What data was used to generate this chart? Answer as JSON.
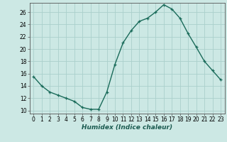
{
  "x": [
    0,
    1,
    2,
    3,
    4,
    5,
    6,
    7,
    8,
    9,
    10,
    11,
    12,
    13,
    14,
    15,
    16,
    17,
    18,
    19,
    20,
    21,
    22,
    23
  ],
  "y": [
    15.5,
    14.0,
    13.0,
    12.5,
    12.0,
    11.5,
    10.5,
    10.2,
    10.2,
    13.0,
    17.5,
    21.0,
    23.0,
    24.5,
    25.0,
    26.0,
    27.2,
    26.5,
    25.0,
    22.5,
    20.3,
    18.0,
    16.5,
    15.0
  ],
  "line_color": "#1a6b5a",
  "marker": "+",
  "marker_size": 3.5,
  "bg_color": "#cce8e4",
  "grid_color": "#aad0cb",
  "xlabel": "Humidex (Indice chaleur)",
  "xlim": [
    -0.5,
    23.5
  ],
  "ylim": [
    9.5,
    27.5
  ],
  "yticks": [
    10,
    12,
    14,
    16,
    18,
    20,
    22,
    24,
    26
  ],
  "xticks": [
    0,
    1,
    2,
    3,
    4,
    5,
    6,
    7,
    8,
    9,
    10,
    11,
    12,
    13,
    14,
    15,
    16,
    17,
    18,
    19,
    20,
    21,
    22,
    23
  ],
  "tick_fontsize": 5.5,
  "xlabel_fontsize": 6.5,
  "line_width": 1.0
}
